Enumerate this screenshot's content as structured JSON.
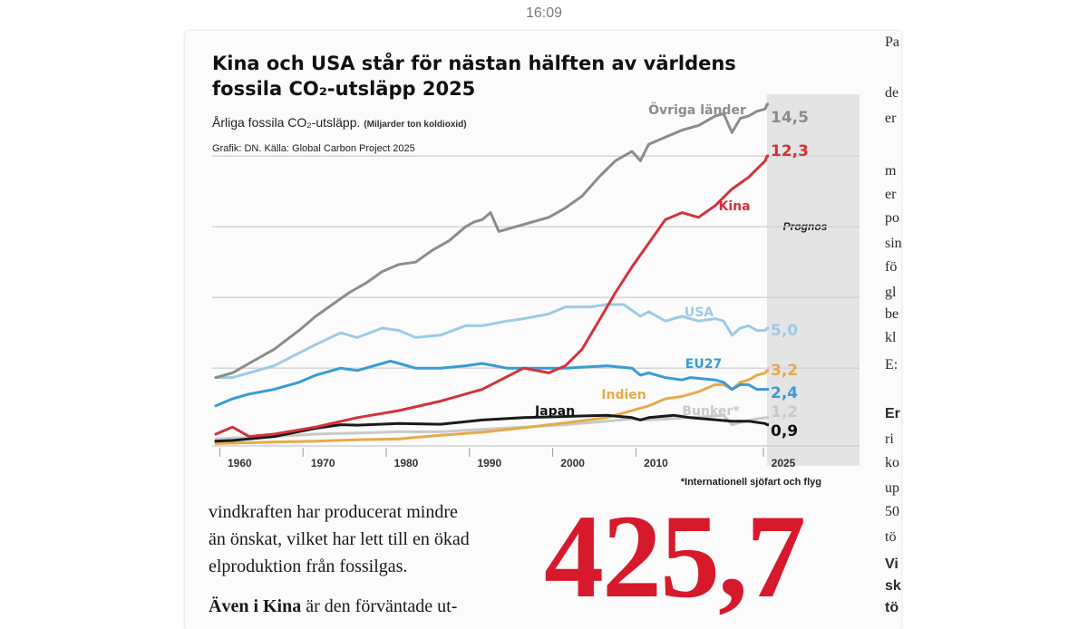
{
  "status_bar": {
    "time": "16:09"
  },
  "article": {
    "headline_lines": [
      "Kina och USA står för nästan hälften av världens",
      "fossila CO₂-utsläpp 2025"
    ],
    "subtitle": "Årliga fossila CO₂-utsläpp.",
    "units": "(Miljarder ton koldioxid)",
    "credit": "Grafik: DN. Källa: Global Carbon Project 2025",
    "body_lines": [
      "vindkraften har producerat mindre",
      "än önskat, vilket har lett till en ökad",
      "elproduktion från fossilgas."
    ],
    "body_cut_bold": "Även i Kina",
    "body_cut_rest": " är den förväntade ut-",
    "big_number": "425,7",
    "next_column_fragments": [
      {
        "text": "Pa",
        "bold": false
      },
      {
        "text": "de",
        "bold": false
      },
      {
        "text": "er",
        "bold": false
      },
      {
        "text": "m",
        "bold": false
      },
      {
        "text": "er",
        "bold": false
      },
      {
        "text": "po",
        "bold": false
      },
      {
        "text": "sin",
        "bold": false
      },
      {
        "text": "fö",
        "bold": false
      },
      {
        "text": "gl",
        "bold": false
      },
      {
        "text": "be",
        "bold": false
      },
      {
        "text": "kl",
        "bold": false
      },
      {
        "text": "E:",
        "bold": false
      },
      {
        "text": "Er",
        "bold": true
      },
      {
        "text": "ri",
        "bold": false
      },
      {
        "text": "ko",
        "bold": false
      },
      {
        "text": "up",
        "bold": false
      },
      {
        "text": "50",
        "bold": false
      },
      {
        "text": "tö",
        "bold": false
      },
      {
        "text": "Vi",
        "bold": true
      },
      {
        "text": "sk",
        "bold": true
      },
      {
        "text": "tö",
        "bold": true
      }
    ]
  },
  "colors": {
    "ovriga": "#8c8c8c",
    "kina": "#d3333a",
    "usa": "#9ccbe6",
    "eu27": "#3a9bd5",
    "indien": "#e8a94a",
    "bunker": "#c9c9c9",
    "japan": "#1a1a1a",
    "big_number": "#d7192c"
  },
  "chart_data": {
    "type": "line",
    "title": "Kina och USA står för nästan hälften av världens fossila CO₂-utsläpp 2025",
    "subtitle": "Årliga fossila CO₂-utsläpp.",
    "ylabel": "Miljarder ton koldioxid",
    "xlim": [
      1958,
      2025
    ],
    "ylim": [
      0,
      15
    ],
    "x_ticks": [
      1960,
      1970,
      1980,
      1990,
      2000,
      2010,
      2025
    ],
    "forecast_label": "Prognos",
    "forecast_range": [
      2024,
      2025
    ],
    "footnote": "*Internationell sjöfart och flyg",
    "series": [
      {
        "name": "Övriga länder",
        "color_key": "ovriga",
        "end_label": "14,5",
        "x": [
          1958,
          1960,
          1962,
          1965,
          1968,
          1970,
          1972,
          1974,
          1976,
          1978,
          1980,
          1982,
          1984,
          1986,
          1988,
          1989,
          1990,
          1991,
          1992,
          1994,
          1996,
          1998,
          2000,
          2002,
          2004,
          2006,
          2008,
          2009,
          2010,
          2012,
          2014,
          2016,
          2018,
          2019,
          2020,
          2021,
          2022,
          2023,
          2024,
          2025
        ],
        "y": [
          2.9,
          3.1,
          3.5,
          4.1,
          4.9,
          5.5,
          6.0,
          6.5,
          6.9,
          7.4,
          7.7,
          7.8,
          8.3,
          8.7,
          9.3,
          9.5,
          9.6,
          9.9,
          9.1,
          9.3,
          9.5,
          9.7,
          10.1,
          10.6,
          11.4,
          12.1,
          12.5,
          12.1,
          12.8,
          13.1,
          13.4,
          13.6,
          14.0,
          14.1,
          13.3,
          13.9,
          14.0,
          14.2,
          14.3,
          14.5
        ]
      },
      {
        "name": "Kina",
        "color_key": "kina",
        "end_label": "12,3",
        "x": [
          1958,
          1960,
          1962,
          1965,
          1970,
          1975,
          1980,
          1985,
          1990,
          1995,
          1998,
          2000,
          2002,
          2004,
          2006,
          2008,
          2010,
          2012,
          2014,
          2016,
          2018,
          2020,
          2022,
          2024,
          2025
        ],
        "y": [
          0.5,
          0.8,
          0.4,
          0.5,
          0.8,
          1.2,
          1.5,
          1.9,
          2.4,
          3.3,
          3.1,
          3.4,
          4.1,
          5.3,
          6.5,
          7.6,
          8.6,
          9.6,
          9.9,
          9.7,
          10.2,
          10.9,
          11.4,
          12.1,
          12.3
        ]
      },
      {
        "name": "USA",
        "color_key": "usa",
        "end_label": "5,0",
        "x": [
          1958,
          1960,
          1962,
          1965,
          1970,
          1973,
          1975,
          1978,
          1980,
          1982,
          1985,
          1988,
          1990,
          1993,
          1995,
          1998,
          2000,
          2003,
          2005,
          2007,
          2009,
          2010,
          2012,
          2014,
          2016,
          2018,
          2019,
          2020,
          2021,
          2022,
          2023,
          2024,
          2025
        ],
        "y": [
          2.9,
          2.9,
          3.1,
          3.4,
          4.3,
          4.8,
          4.6,
          5.0,
          4.9,
          4.6,
          4.7,
          5.1,
          5.1,
          5.3,
          5.4,
          5.6,
          5.9,
          5.9,
          6.0,
          6.0,
          5.5,
          5.7,
          5.3,
          5.5,
          5.3,
          5.4,
          5.3,
          4.7,
          5.0,
          5.1,
          4.9,
          4.9,
          5.0
        ]
      },
      {
        "name": "EU27",
        "color_key": "eu27",
        "end_label": "2,4",
        "x": [
          1958,
          1960,
          1962,
          1965,
          1968,
          1970,
          1973,
          1975,
          1978,
          1979,
          1980,
          1982,
          1985,
          1988,
          1990,
          1993,
          1995,
          2000,
          2005,
          2008,
          2009,
          2010,
          2012,
          2014,
          2015,
          2018,
          2019,
          2020,
          2021,
          2022,
          2023,
          2024,
          2025
        ],
        "y": [
          1.7,
          2.0,
          2.2,
          2.4,
          2.7,
          3.0,
          3.3,
          3.2,
          3.5,
          3.6,
          3.5,
          3.3,
          3.3,
          3.4,
          3.5,
          3.3,
          3.3,
          3.3,
          3.4,
          3.3,
          3.0,
          3.1,
          2.9,
          2.8,
          2.9,
          2.8,
          2.7,
          2.4,
          2.6,
          2.6,
          2.4,
          2.4,
          2.4
        ]
      },
      {
        "name": "Indien",
        "color_key": "indien",
        "end_label": "3,2",
        "x": [
          1958,
          1960,
          1965,
          1970,
          1975,
          1980,
          1985,
          1990,
          1995,
          2000,
          2005,
          2010,
          2012,
          2014,
          2016,
          2018,
          2019,
          2020,
          2021,
          2022,
          2023,
          2024,
          2025
        ],
        "y": [
          0.1,
          0.12,
          0.16,
          0.2,
          0.26,
          0.3,
          0.45,
          0.58,
          0.77,
          0.98,
          1.2,
          1.7,
          2.0,
          2.1,
          2.3,
          2.6,
          2.6,
          2.4,
          2.7,
          2.8,
          3.0,
          3.1,
          3.2
        ]
      },
      {
        "name": "Bunker*",
        "color_key": "bunker",
        "end_label": "1,2",
        "x": [
          1958,
          1960,
          1965,
          1970,
          1975,
          1980,
          1985,
          1990,
          1995,
          2000,
          2005,
          2008,
          2010,
          2015,
          2019,
          2020,
          2021,
          2023,
          2025
        ],
        "y": [
          0.3,
          0.33,
          0.4,
          0.5,
          0.55,
          0.6,
          0.6,
          0.7,
          0.8,
          0.9,
          1.05,
          1.15,
          1.1,
          1.2,
          1.3,
          0.9,
          1.0,
          1.15,
          1.2
        ]
      },
      {
        "name": "Japan",
        "color_key": "japan",
        "end_label": "0,9",
        "x": [
          1958,
          1960,
          1965,
          1970,
          1973,
          1975,
          1980,
          1985,
          1990,
          1995,
          2000,
          2005,
          2008,
          2009,
          2010,
          2013,
          2015,
          2020,
          2022,
          2024,
          2025
        ],
        "y": [
          0.2,
          0.23,
          0.4,
          0.75,
          0.9,
          0.88,
          0.95,
          0.92,
          1.1,
          1.2,
          1.25,
          1.3,
          1.2,
          1.1,
          1.2,
          1.3,
          1.2,
          1.05,
          1.05,
          0.95,
          0.9
        ]
      }
    ]
  }
}
